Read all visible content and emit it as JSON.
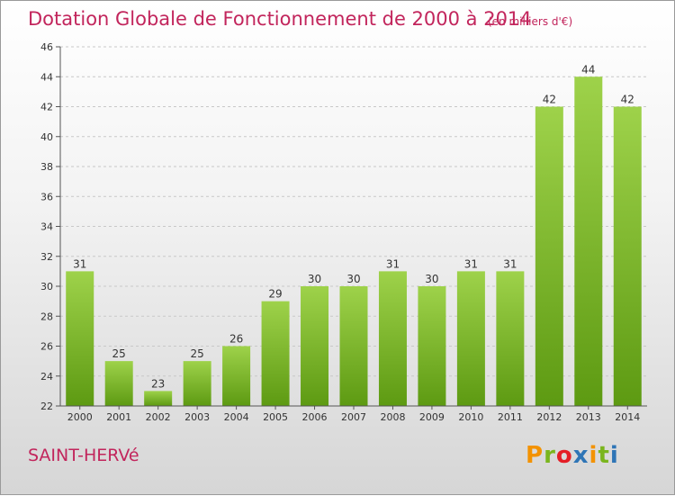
{
  "title": "Dotation Globale de Fonctionnement de 2000 à 2014",
  "subtitle": "(en milliers d'€)",
  "commune": "SAINT-HERVé",
  "logo": {
    "text": "Proxiti",
    "colors": [
      "#f39200",
      "#7ab51d",
      "#e41e26",
      "#2e75b6",
      "#f39200",
      "#7ab51d",
      "#2e75b6"
    ]
  },
  "colors": {
    "bar_top": "#9ed24a",
    "bar_bottom": "#5d9a12",
    "title": "#c2255c"
  },
  "chart_data": {
    "type": "bar",
    "categories": [
      "2000",
      "2001",
      "2002",
      "2003",
      "2004",
      "2005",
      "2006",
      "2007",
      "2008",
      "2009",
      "2010",
      "2011",
      "2012",
      "2013",
      "2014"
    ],
    "values": [
      31,
      25,
      23,
      25,
      26,
      29,
      30,
      30,
      31,
      30,
      31,
      31,
      42,
      44,
      42
    ],
    "title": "Dotation Globale de Fonctionnement de 2000 à 2014",
    "subtitle": "(en milliers d'€)",
    "ylim": [
      22,
      46
    ],
    "yticks": [
      22,
      24,
      26,
      28,
      30,
      32,
      34,
      36,
      38,
      40,
      42,
      44,
      46
    ],
    "grid": true
  }
}
